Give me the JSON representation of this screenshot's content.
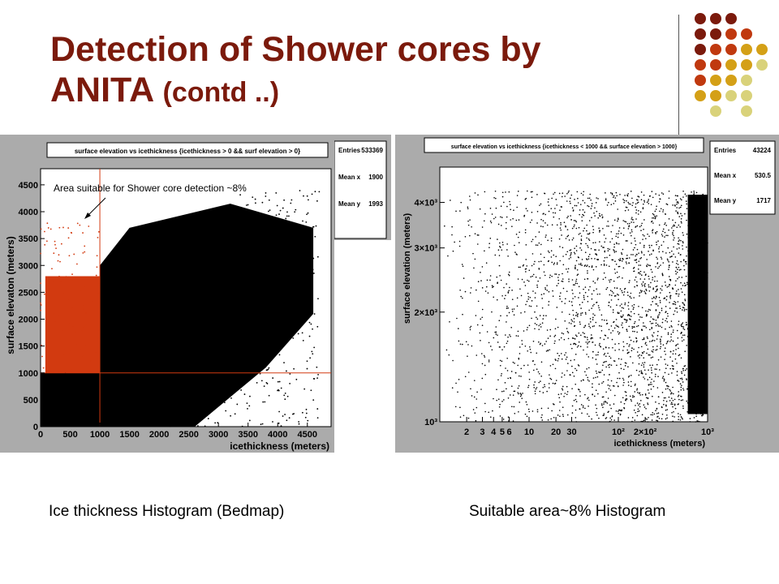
{
  "slide": {
    "title_main": "Detection of Shower cores by ANITA",
    "title_suffix": "(contd ..)",
    "caption_left": "Ice thickness Histogram (Bedmap)",
    "caption_right": "Suitable area~8% Histogram"
  },
  "decor_colors": [
    "#7b1a0c",
    "#c0390f",
    "#d4a017",
    "#d9d27a"
  ],
  "chart_data": [
    {
      "type": "scatter",
      "title": "surface elevation vs icethickness {icethickness > 0 && surf elevation > 0}",
      "xlabel": "icethickness (meters)",
      "ylabel": "surface elevaton (meters)",
      "xlim": [
        0,
        4900
      ],
      "ylim": [
        0,
        4800
      ],
      "xticks": [
        "0",
        "500",
        "1000",
        "1500",
        "2000",
        "2500",
        "3000",
        "3500",
        "4000",
        "4500"
      ],
      "yticks": [
        "0",
        "500",
        "1000",
        "1500",
        "2000",
        "2500",
        "3000",
        "3500",
        "4000",
        "4500"
      ],
      "stats": [
        {
          "label": "Entries",
          "value": "533369"
        },
        {
          "label": "Mean x",
          "value": "1900"
        },
        {
          "label": "Mean y",
          "value": "1993"
        }
      ],
      "cut_lines": {
        "icethickness": 1000,
        "surface_elevation": 1000
      },
      "region_colors": {
        "suitable": "#d23a10",
        "other": "#000000"
      },
      "annotation": "Area suitable  for Shower core detection ~8%"
    },
    {
      "type": "scatter",
      "title": "surface elevation vs icethickness {icethickness < 1000 && surface elevation > 1000}",
      "xlabel": "icethickness (meters)",
      "ylabel": "surface elevation (meters)",
      "xscale": "log",
      "yscale": "log",
      "xlim": [
        1,
        1000
      ],
      "ylim": [
        1000,
        5000
      ],
      "xticks": [
        "2",
        "3",
        "4",
        "5",
        "6",
        "10",
        "20",
        "30",
        "10²",
        "2×10²",
        "10³"
      ],
      "yticks": [
        "10³",
        "2×10³",
        "3×10³",
        "4×10³"
      ],
      "stats": [
        {
          "label": "Entries",
          "value": "43224"
        },
        {
          "label": "Mean x",
          "value": "530.5"
        },
        {
          "label": "Mean y",
          "value": "1717"
        }
      ]
    }
  ]
}
